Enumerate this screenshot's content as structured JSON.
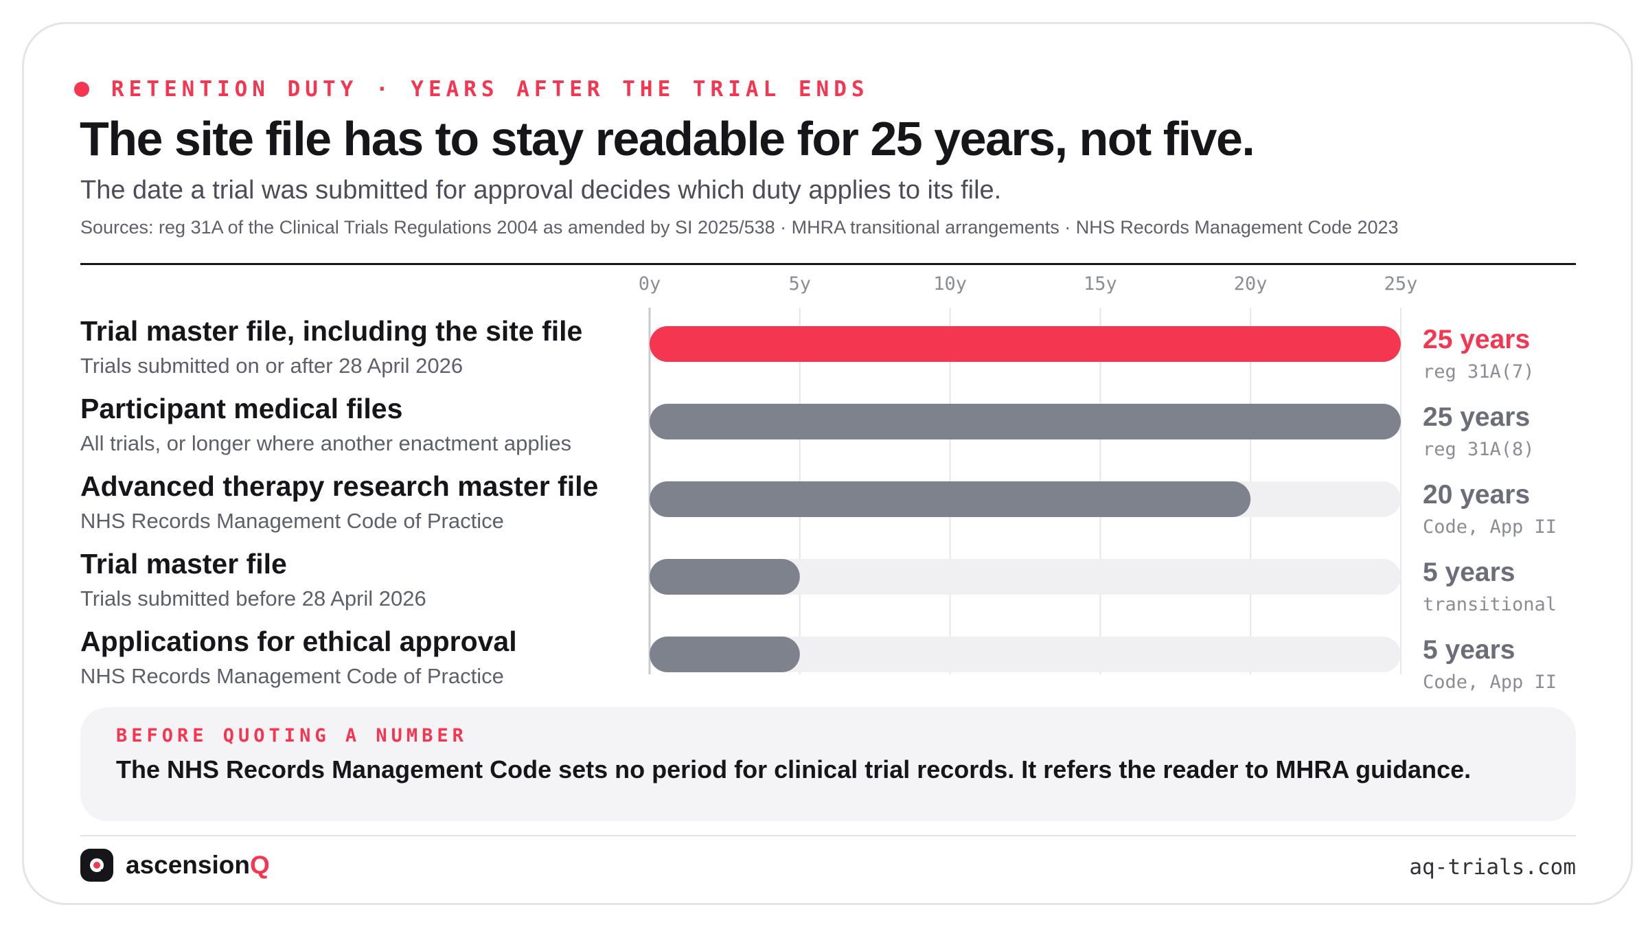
{
  "header": {
    "eyebrow": "RETENTION DUTY · YEARS AFTER THE TRIAL ENDS",
    "title": "The site file has to stay readable for 25 years, not five.",
    "subtitle": "The date a trial was submitted for approval decides which duty applies to its file.",
    "sources": "Sources: reg 31A of the Clinical Trials Regulations 2004 as amended by SI 2025/538 · MHRA transitional arrangements · NHS Records Management Code 2023"
  },
  "colors": {
    "accent": "#f43650",
    "bar_default": "#7d828c",
    "track": "#f0f0f2",
    "grid": "#e6e6ea",
    "value_default": "#6b6e78"
  },
  "chart_data": {
    "type": "bar",
    "orientation": "horizontal",
    "xlim": [
      0,
      25
    ],
    "ticks": [
      0,
      5,
      10,
      15,
      20,
      25
    ],
    "tick_labels": [
      "0y",
      "5y",
      "10y",
      "15y",
      "20y",
      "25y"
    ],
    "grid": true,
    "categories": [
      "Trial master file, including the site file",
      "Participant medical files",
      "Advanced therapy research master file",
      "Trial master file",
      "Applications for ethical approval"
    ],
    "subtitles": [
      "Trials submitted on or after 28 April 2026",
      "All trials, or longer where another enactment applies",
      "NHS Records Management Code of Practice",
      "Trials submitted before 28 April 2026",
      "NHS Records Management Code of Practice"
    ],
    "values": [
      25,
      25,
      20,
      5,
      5
    ],
    "value_labels": [
      "25 years",
      "25 years",
      "20 years",
      "5 years",
      "5 years"
    ],
    "references": [
      "reg 31A(7)",
      "reg 31A(8)",
      "Code, App II",
      "transitional",
      "Code, App II"
    ],
    "highlight_index": 0
  },
  "note": {
    "kicker": "BEFORE QUOTING A NUMBER",
    "text": "The NHS Records Management Code sets no period for clinical trial records. It refers the reader to MHRA guidance."
  },
  "footer": {
    "brand": "ascension",
    "brand_q": "Q",
    "logo_icon": "ascensionq-logo-icon",
    "site": "aq-trials.com"
  }
}
